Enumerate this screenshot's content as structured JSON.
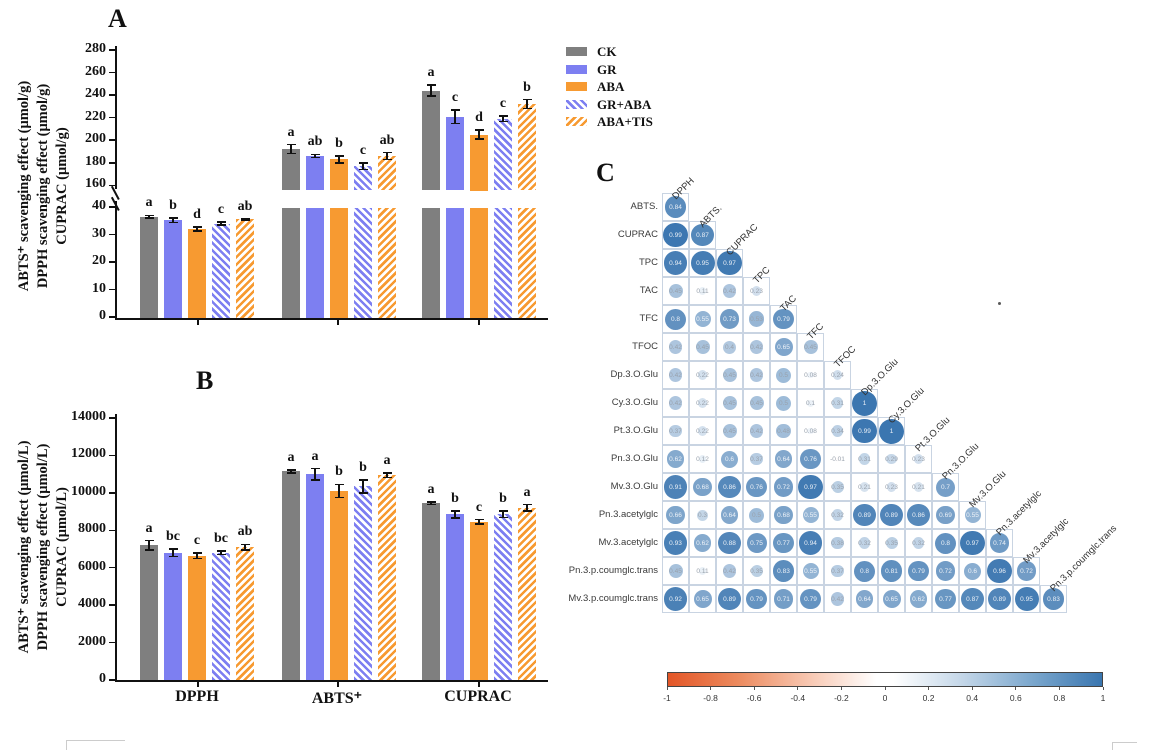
{
  "legend": {
    "items": [
      {
        "label": "CK",
        "color": "#7f7f7f",
        "pattern": "solid"
      },
      {
        "label": "GR",
        "color": "#7d7ff1",
        "pattern": "solid"
      },
      {
        "label": "ABA",
        "color": "#f79a31",
        "pattern": "solid"
      },
      {
        "label": "GR+ABA",
        "color": "#7d7ff1",
        "pattern": "hatch-up"
      },
      {
        "label": "ABA+TIS",
        "color": "#f79a31",
        "pattern": "hatch-down"
      }
    ]
  },
  "chart_data": [
    {
      "id": "A",
      "type": "bar",
      "panel_label": "A",
      "ylabel_lines": [
        "ABTS⁺ scavenging effect (μmol/g)",
        "DPPH scavenging effect (μmol/g)",
        "CUPRAC (μmol/g)"
      ],
      "categories": [
        "DPPH",
        "ABTS⁺",
        "CUPRAC"
      ],
      "category_scales": [
        "lower",
        "upper",
        "upper"
      ],
      "y_axis": {
        "upper_ticks": [
          280,
          260,
          240,
          220,
          200,
          180,
          160
        ],
        "lower_ticks": [
          40,
          30,
          20,
          10,
          0
        ],
        "axis_break": true
      },
      "show_x_tick_labels": false,
      "series": [
        {
          "name": "CK",
          "values": [
            36.5,
            192,
            244
          ],
          "errors": [
            0.5,
            4,
            5
          ],
          "letters": [
            "a",
            "a",
            "a"
          ]
        },
        {
          "name": "GR",
          "values": [
            35.2,
            186,
            221
          ],
          "errors": [
            0.8,
            1.5,
            6
          ],
          "letters": [
            "b",
            "ab",
            "c"
          ]
        },
        {
          "name": "ABA",
          "values": [
            32,
            183,
            205
          ],
          "errors": [
            0.8,
            3,
            4
          ],
          "letters": [
            "d",
            "b",
            "d"
          ]
        },
        {
          "name": "GR+ABA",
          "values": [
            34,
            177,
            219
          ],
          "errors": [
            0.5,
            3,
            2.5
          ],
          "letters": [
            "c",
            "c",
            "c"
          ]
        },
        {
          "name": "ABA+TIS",
          "values": [
            35.5,
            186,
            232
          ],
          "errors": [
            0.3,
            3,
            4
          ],
          "letters": [
            "ab",
            "ab",
            "b"
          ]
        }
      ]
    },
    {
      "id": "B",
      "type": "bar",
      "panel_label": "B",
      "ylabel_lines": [
        "ABTS⁺ scavenging effect (μmol/L)",
        "DPPH scavenging effect (μmol/L)",
        "CUPRAC (μmol/L)"
      ],
      "categories": [
        "DPPH",
        "ABTS⁺",
        "CUPRAC"
      ],
      "y_axis": {
        "ticks": [
          14000,
          12000,
          10000,
          8000,
          6000,
          4000,
          2000,
          0
        ]
      },
      "show_x_tick_labels": true,
      "series": [
        {
          "name": "CK",
          "values": [
            7200,
            11150,
            9450
          ],
          "errors": [
            250,
            80,
            70
          ],
          "letters": [
            "a",
            "a",
            "a"
          ]
        },
        {
          "name": "GR",
          "values": [
            6800,
            11000,
            8850
          ],
          "errors": [
            200,
            300,
            180
          ],
          "letters": [
            "bc",
            "a",
            "b"
          ]
        },
        {
          "name": "ABA",
          "values": [
            6650,
            10100,
            8450
          ],
          "errors": [
            150,
            350,
            120
          ],
          "letters": [
            "c",
            "b",
            "c"
          ]
        },
        {
          "name": "GR+ABA",
          "values": [
            6800,
            10350,
            8850
          ],
          "errors": [
            100,
            350,
            170
          ],
          "letters": [
            "bc",
            "b",
            "b"
          ]
        },
        {
          "name": "ABA+TIS",
          "values": [
            7100,
            10950,
            9200
          ],
          "errors": [
            150,
            120,
            180
          ],
          "letters": [
            "ab",
            "a",
            "a"
          ]
        }
      ]
    },
    {
      "id": "C",
      "type": "heatmap",
      "panel_label": "C",
      "columns": [
        "DPPH",
        "ABTS.",
        "CUPRAC",
        "TPC",
        "TAC",
        "TFC",
        "TFOC",
        "Dp.3.O.Glu",
        "Cy.3.O.Glu",
        "Pt.3.O.Glu",
        "Pn.3.O.Glu",
        "Mv.3.O.Glu",
        "Pn.3.acetylglc",
        "Mv.3.acetylglc",
        "Pn.3.p.coumglc.trans"
      ],
      "rows": [
        {
          "name": "ABTS.",
          "values": [
            0.84
          ]
        },
        {
          "name": "CUPRAC",
          "values": [
            0.99,
            0.87
          ]
        },
        {
          "name": "TPC",
          "values": [
            0.94,
            0.95,
            0.97
          ]
        },
        {
          "name": "TAC",
          "values": [
            0.45,
            0.11,
            0.42,
            0.23
          ]
        },
        {
          "name": "TFC",
          "values": [
            0.8,
            0.55,
            0.73,
            0.53,
            0.79
          ]
        },
        {
          "name": "TFOC",
          "values": [
            0.42,
            0.45,
            0.4,
            0.42,
            0.65,
            0.45
          ]
        },
        {
          "name": "Dp.3.O.Glu",
          "values": [
            0.42,
            0.22,
            0.45,
            0.42,
            0.5,
            0.08,
            0.24
          ]
        },
        {
          "name": "Cy.3.O.Glu",
          "values": [
            0.42,
            0.22,
            0.45,
            0.45,
            0.5,
            0.1,
            0.31,
            1
          ]
        },
        {
          "name": "Pt.3.O.Glu",
          "values": [
            0.37,
            0.22,
            0.45,
            0.42,
            0.48,
            0.08,
            0.34,
            0.99,
            1
          ]
        },
        {
          "name": "Pn.3.O.Glu",
          "values": [
            0.62,
            0.12,
            0.6,
            0.37,
            0.64,
            0.76,
            -0.01,
            0.31,
            0.29,
            0.23
          ]
        },
        {
          "name": "Mv.3.O.Glu",
          "values": [
            0.91,
            0.68,
            0.86,
            0.76,
            0.72,
            0.97,
            0.35,
            0.21,
            0.23,
            0.21,
            0.7
          ]
        },
        {
          "name": "Pn.3.acetylglc",
          "values": [
            0.66,
            0.3,
            0.64,
            0.5,
            0.68,
            0.55,
            0.32,
            0.89,
            0.89,
            0.86,
            0.69,
            0.55
          ]
        },
        {
          "name": "Mv.3.acetylglc",
          "values": [
            0.93,
            0.62,
            0.88,
            0.75,
            0.77,
            0.94,
            0.38,
            0.32,
            0.35,
            0.32,
            0.8,
            0.97,
            0.74
          ]
        },
        {
          "name": "Pn.3.p.coumglc.trans",
          "values": [
            0.45,
            0.11,
            0.42,
            0.35,
            0.83,
            0.55,
            0.37,
            0.8,
            0.81,
            0.79,
            0.72,
            0.6,
            0.96,
            0.72
          ]
        },
        {
          "name": "Mv.3.p.coumglc.trans",
          "values": [
            0.92,
            0.65,
            0.89,
            0.79,
            0.71,
            0.79,
            0.42,
            0.64,
            0.65,
            0.62,
            0.77,
            0.87,
            0.89,
            0.95,
            0.83
          ]
        }
      ],
      "colorbar": {
        "min": -1,
        "max": 1,
        "ticks": [
          -1,
          -0.8,
          -0.6,
          -0.4,
          -0.2,
          0,
          0.2,
          0.4,
          0.6,
          0.8,
          1
        ],
        "negative_color": "#e35627",
        "positive_color": "#3a76b0"
      }
    }
  ]
}
